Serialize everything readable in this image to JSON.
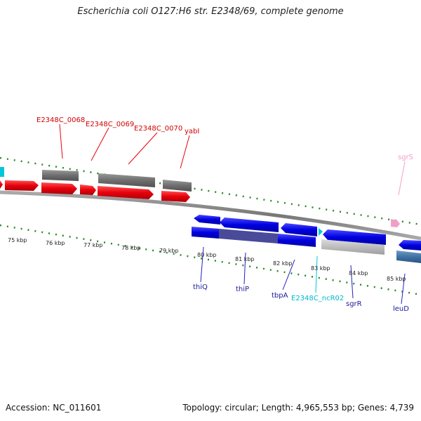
{
  "title": "Escherichia coli O127:H6 str. E2348/69, complete genome",
  "footer": {
    "accession": "Accession: NC_011601",
    "topology": "Topology: circular; Length: 4,965,553 bp; Genes: 4,739"
  },
  "colors": {
    "red": "#e8000b",
    "gray": "#6e6e6e",
    "blue": "#0000e0",
    "cyan": "#00c8d8",
    "pink": "#f0a0c8"
  },
  "kbp_labels": [
    "75 kbp",
    "76 kbp",
    "77 kbp",
    "78 kbp",
    "79 kbp",
    "80 kbp",
    "81 kbp",
    "82 kbp",
    "83 kbp",
    "84 kbp",
    "85 kbp"
  ],
  "gene_labels": {
    "e0068": "E2348C_0068",
    "e0069": "E2348C_0069",
    "e0070": "E2348C_0070",
    "yabI": "yabI",
    "sgrS": "sgrS",
    "thiQ": "thiQ",
    "thiP": "thiP",
    "tbpA": "tbpA",
    "ncR02": "E2348C_ncR02",
    "sgrR": "sgrR",
    "leuD": "leuD"
  }
}
